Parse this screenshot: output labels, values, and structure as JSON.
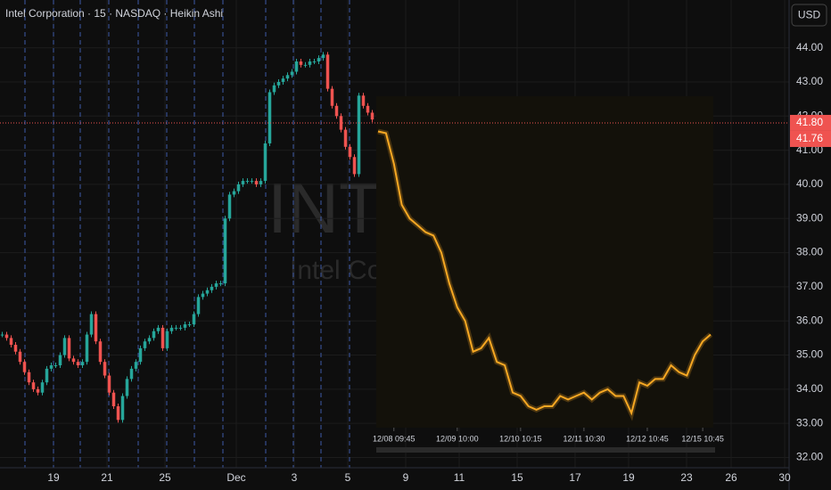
{
  "header": {
    "title": "Intel Corporation · 15 · NASDAQ · Heikin Ashi",
    "currency": "USD"
  },
  "chart_data": [
    {
      "type": "heikin_ashi",
      "watermark": "INTC",
      "watermark_subtitle": "Intel Corporation",
      "values": [
        35.6,
        35.5,
        35.3,
        35.1,
        34.8,
        34.5,
        34.2,
        34.0,
        33.9,
        34.2,
        34.6,
        34.7,
        34.7,
        35.0,
        35.5,
        34.9,
        34.8,
        34.7,
        34.8,
        35.6,
        36.2,
        35.4,
        34.8,
        34.4,
        33.9,
        33.5,
        33.1,
        33.8,
        34.3,
        34.6,
        34.8,
        35.2,
        35.4,
        35.5,
        35.7,
        35.8,
        35.2,
        35.7,
        35.8,
        35.8,
        35.8,
        35.9,
        35.9,
        36.2,
        36.7,
        36.8,
        36.9,
        37.0,
        37.1,
        37.1,
        39.0,
        39.7,
        39.8,
        40.0,
        40.1,
        40.1,
        40.1,
        40.0,
        40.1,
        41.2,
        42.7,
        42.9,
        43.0,
        43.1,
        43.2,
        43.3,
        43.6,
        43.5,
        43.5,
        43.6,
        43.6,
        43.7,
        43.8,
        42.8,
        42.3,
        42.0,
        41.6,
        41.1,
        40.8,
        40.3,
        42.6,
        42.3,
        42.1,
        41.9
      ],
      "up_color": "#26a69a",
      "down_color": "#ef5350",
      "xlim": [
        0,
        177
      ],
      "xticks": [
        {
          "value": 12,
          "label": "19"
        },
        {
          "value": 24,
          "label": "21"
        },
        {
          "value": 37,
          "label": "25"
        },
        {
          "value": 53,
          "label": "Dec"
        },
        {
          "value": 66,
          "label": "3"
        },
        {
          "value": 78,
          "label": "5"
        },
        {
          "value": 91,
          "label": "9"
        },
        {
          "value": 103,
          "label": "11"
        },
        {
          "value": 116,
          "label": "15"
        },
        {
          "value": 129,
          "label": "17"
        },
        {
          "value": 141,
          "label": "19"
        },
        {
          "value": 154,
          "label": "23"
        },
        {
          "value": 164,
          "label": "26"
        },
        {
          "value": 176,
          "label": "30"
        }
      ],
      "session_breaks": [
        5.6,
        12,
        18,
        24.4,
        31,
        37.4,
        43.6,
        50,
        59.6,
        65.8,
        72,
        78.4
      ],
      "ylim": [
        31.7,
        45.4
      ],
      "yticks": [
        {
          "value": 32,
          "label": "32.00"
        },
        {
          "value": 33,
          "label": "33.00"
        },
        {
          "value": 34,
          "label": "34.00"
        },
        {
          "value": 35,
          "label": "35.00"
        },
        {
          "value": 36,
          "label": "36.00"
        },
        {
          "value": 37,
          "label": "37.00"
        },
        {
          "value": 38,
          "label": "38.00"
        },
        {
          "value": 39,
          "label": "39.00"
        },
        {
          "value": 40,
          "label": "40.00"
        },
        {
          "value": 41,
          "label": "41.00"
        },
        {
          "value": 42,
          "label": "42.00"
        },
        {
          "value": 43,
          "label": "43.00"
        },
        {
          "value": 44,
          "label": "44.00"
        }
      ],
      "price_tags": [
        {
          "value": 41.8,
          "label": "41.80"
        },
        {
          "value": 41.76,
          "label": "41.76"
        }
      ],
      "grid": true
    },
    {
      "type": "line",
      "color": "#f7a823",
      "values": [
        41.55,
        41.5,
        40.6,
        39.4,
        39.0,
        38.8,
        38.6,
        38.5,
        38.0,
        37.1,
        36.4,
        36.0,
        35.1,
        35.2,
        35.5,
        34.8,
        34.7,
        33.9,
        33.8,
        33.5,
        33.4,
        33.5,
        33.5,
        33.8,
        33.7,
        33.8,
        33.9,
        33.7,
        33.9,
        34.0,
        33.8,
        33.8,
        33.3,
        34.2,
        34.1,
        34.3,
        34.3,
        34.7,
        34.5,
        34.4,
        35.0,
        35.4,
        35.6
      ],
      "xlim": [
        0,
        42
      ],
      "xticks": [
        {
          "value": 2,
          "label": "12/08 09:45"
        },
        {
          "value": 10,
          "label": "12/09 10:00"
        },
        {
          "value": 18,
          "label": "12/10 10:15"
        },
        {
          "value": 26,
          "label": "12/11 10:30"
        },
        {
          "value": 34,
          "label": "12/12 10:45"
        },
        {
          "value": 41,
          "label": "12/15 10:45"
        }
      ],
      "ylim": [
        31.7,
        45.4
      ]
    }
  ]
}
